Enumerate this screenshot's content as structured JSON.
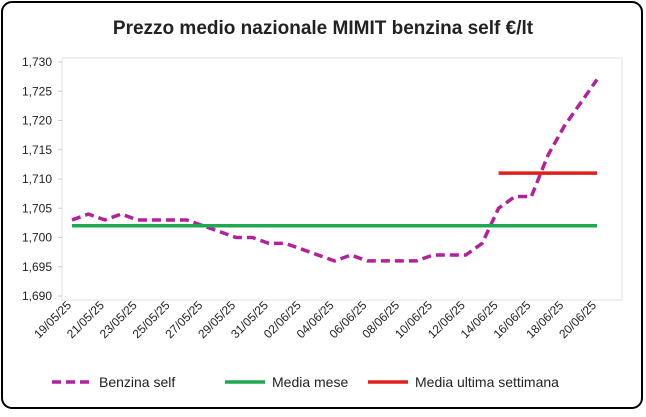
{
  "chart_data": {
    "type": "line",
    "title": "Prezzo medio nazionale MIMIT benzina self €/lt",
    "categories": [
      "19/05/25",
      null,
      "21/05/25",
      null,
      "23/05/25",
      null,
      "25/05/25",
      null,
      "27/05/25",
      null,
      "29/05/25",
      null,
      "31/05/25",
      null,
      "02/06/25",
      null,
      "04/06/25",
      null,
      "06/06/25",
      null,
      "08/06/25",
      null,
      "10/06/25",
      null,
      "12/06/25",
      null,
      "14/06/25",
      null,
      "16/06/25",
      null,
      "18/06/25",
      null,
      "20/06/25"
    ],
    "series": [
      {
        "name": "Benzina self",
        "color": "#b3219b",
        "dashed": true,
        "values": [
          1.703,
          1.704,
          1.703,
          1.704,
          1.703,
          1.703,
          1.703,
          1.703,
          1.702,
          1.701,
          1.7,
          1.7,
          1.699,
          1.699,
          1.698,
          1.697,
          1.696,
          1.697,
          1.696,
          1.696,
          1.696,
          1.696,
          1.697,
          1.697,
          1.697,
          1.699,
          1.705,
          1.707,
          1.707,
          1.714,
          1.719,
          1.723,
          1.727
        ]
      },
      {
        "name": "Media mese",
        "color": "#1fa84f",
        "values": [
          1.702,
          1.702,
          1.702,
          1.702,
          1.702,
          1.702,
          1.702,
          1.702,
          1.702,
          1.702,
          1.702,
          1.702,
          1.702,
          1.702,
          1.702,
          1.702,
          1.702,
          1.702,
          1.702,
          1.702,
          1.702,
          1.702,
          1.702,
          1.702,
          1.702,
          1.702,
          1.702,
          1.702,
          1.702,
          1.702,
          1.702,
          1.702,
          1.702
        ]
      },
      {
        "name": "Media ultima settimana",
        "color": "#e0201b",
        "values": [
          null,
          null,
          null,
          null,
          null,
          null,
          null,
          null,
          null,
          null,
          null,
          null,
          null,
          null,
          null,
          null,
          null,
          null,
          null,
          null,
          null,
          null,
          null,
          null,
          null,
          null,
          1.711,
          1.711,
          1.711,
          1.711,
          1.711,
          1.711,
          1.711
        ]
      }
    ],
    "ylim": [
      1.69,
      1.73
    ],
    "yticks": [
      {
        "value": 1.69,
        "label": "1,690"
      },
      {
        "value": 1.695,
        "label": "1,695"
      },
      {
        "value": 1.7,
        "label": "1,700"
      },
      {
        "value": 1.705,
        "label": "1,705"
      },
      {
        "value": 1.71,
        "label": "1,710"
      },
      {
        "value": 1.715,
        "label": "1,715"
      },
      {
        "value": 1.72,
        "label": "1,720"
      },
      {
        "value": 1.725,
        "label": "1,725"
      },
      {
        "value": 1.73,
        "label": "1,730"
      }
    ],
    "grid": false
  }
}
